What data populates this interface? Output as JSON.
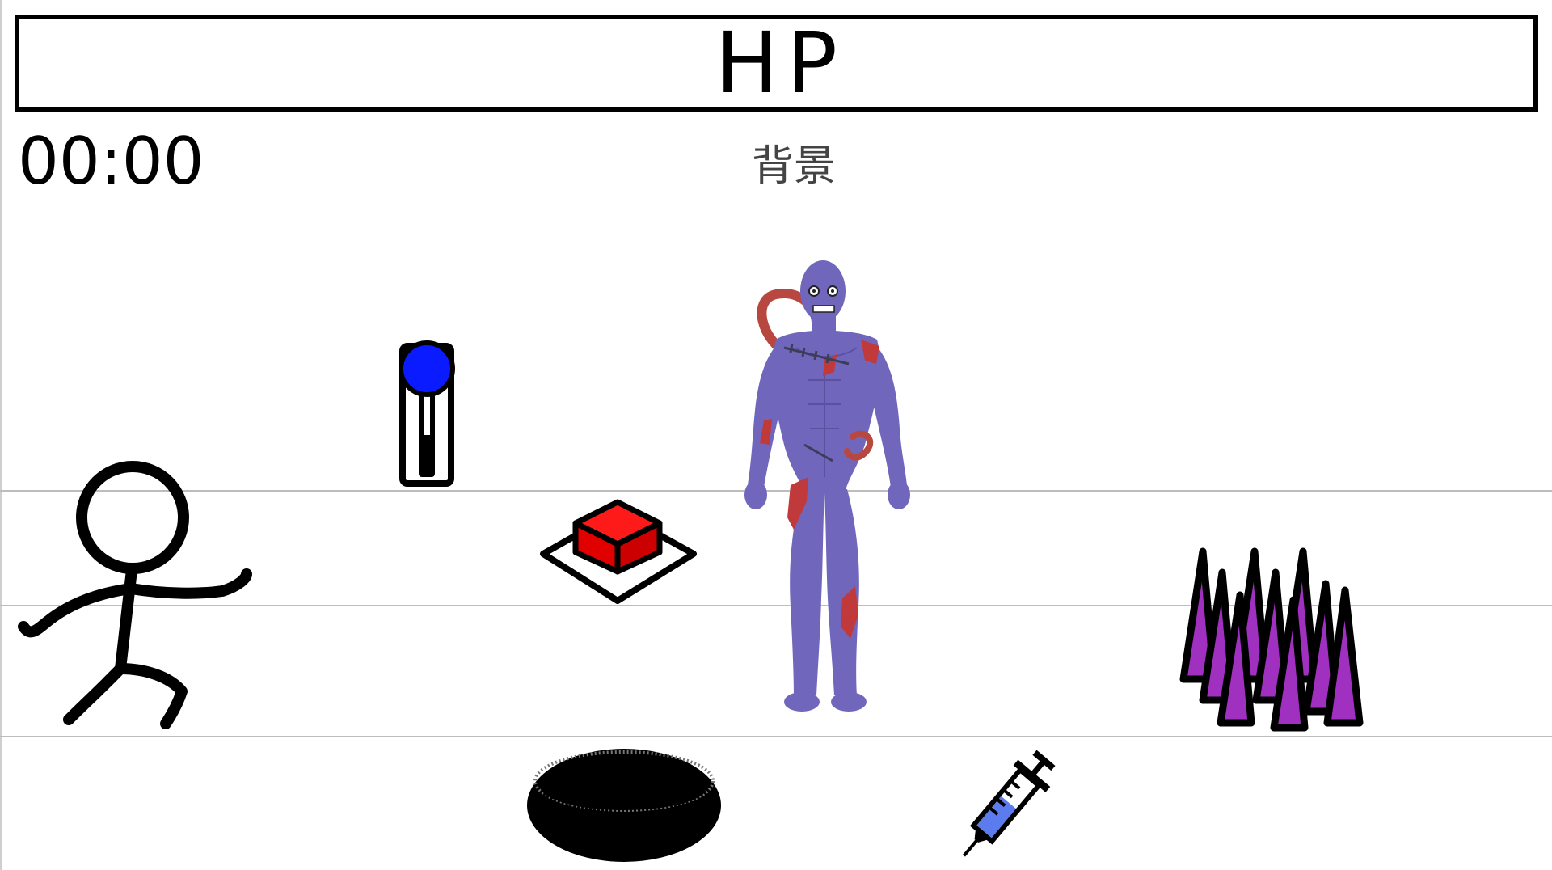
{
  "hud": {
    "hp_label": "HP",
    "timer": "00:00"
  },
  "scene": {
    "background_label": "背景"
  },
  "sprites": [
    {
      "name": "stick-figure-player",
      "icon": "running-stick-figure"
    },
    {
      "name": "lever-switch",
      "icon": "blue-knob-lever"
    },
    {
      "name": "floor-button",
      "icon": "red-pressure-button"
    },
    {
      "name": "zombie-enemy",
      "icon": "purple-zombie"
    },
    {
      "name": "spike-trap",
      "icon": "purple-spikes"
    },
    {
      "name": "pit-hole",
      "icon": "black-hole"
    },
    {
      "name": "syringe-item",
      "icon": "blue-syringe"
    }
  ],
  "colors": {
    "zombie_skin": "#7067bd",
    "zombie_wound": "#c0393b",
    "lever_knob": "#0a1cff",
    "button_red": "#e00000",
    "spike_purple": "#a030c0",
    "syringe_liquid": "#5b7bef",
    "lane_line": "#bdbdbd"
  }
}
